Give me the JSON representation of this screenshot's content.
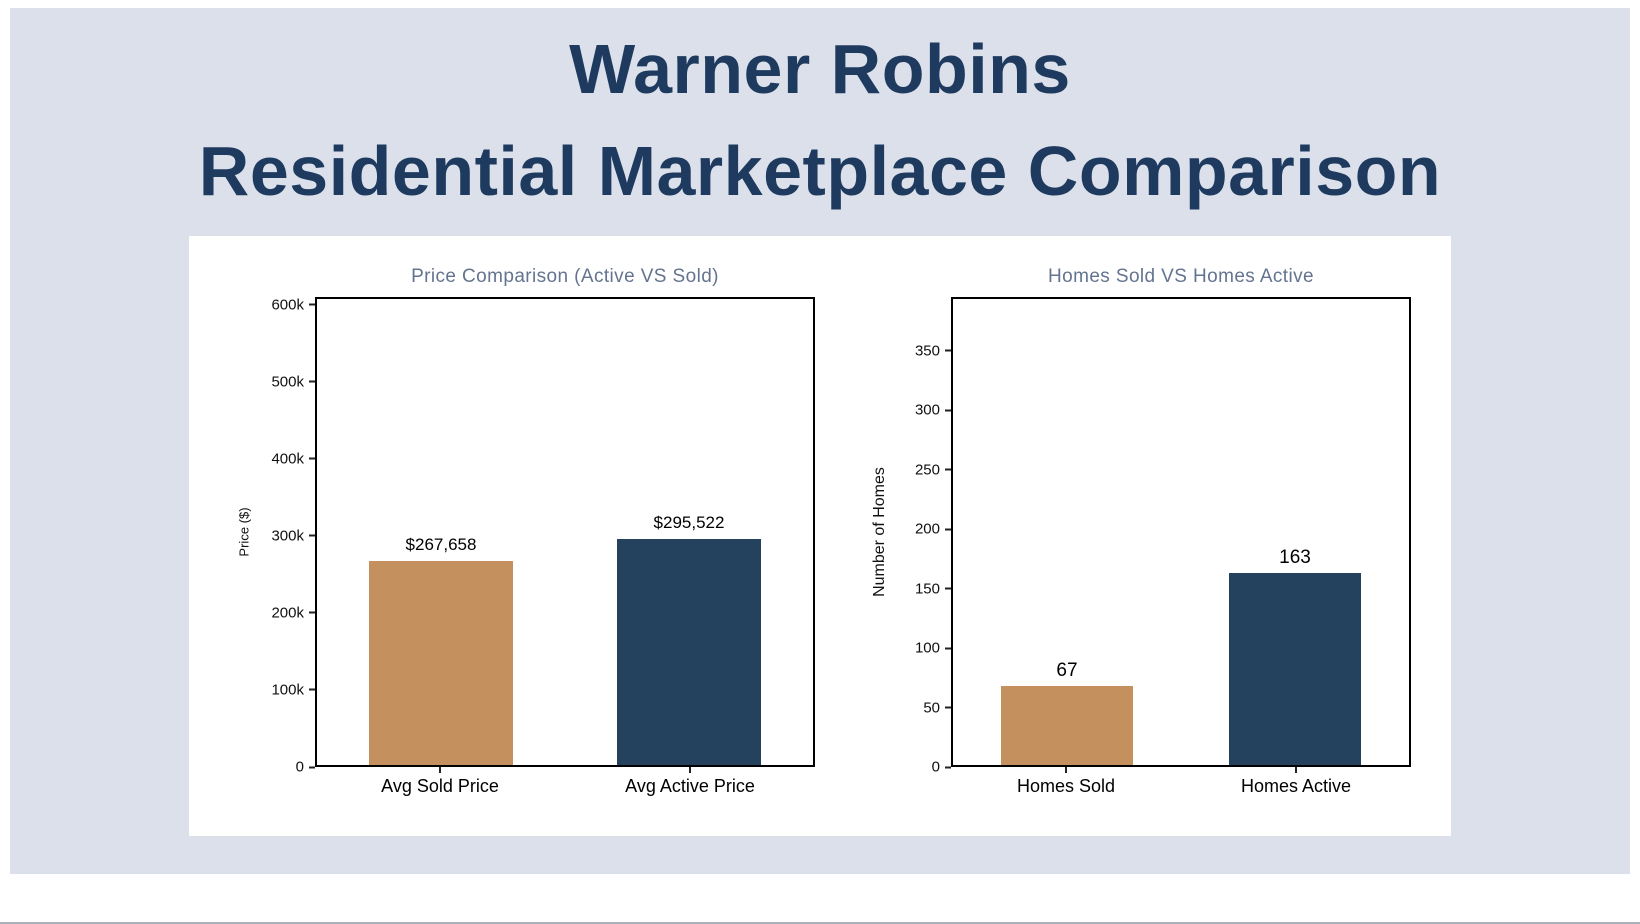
{
  "header": {
    "title_line1": "Warner Robins",
    "title_line2": "Residential Marketplace Comparison"
  },
  "colors": {
    "page_background": "#dbe0eb",
    "panel_background": "#ffffff",
    "title_text": "#1e3a5f",
    "chart_title_text": "#64748f",
    "axis_text": "#111111",
    "tan_bar": "#c3905e",
    "navy_bar": "#24415e"
  },
  "chart_data": [
    {
      "type": "bar",
      "title": "Price Comparison (Active VS Sold)",
      "xlabel": "",
      "ylabel": "Price ($)",
      "categories": [
        "Avg Sold Price",
        "Avg Active Price"
      ],
      "values": [
        267658,
        295522
      ],
      "value_labels": [
        "$267,658",
        "$295,522"
      ],
      "bar_colors": [
        "#c3905e",
        "#24415e"
      ],
      "ylim": [
        0,
        610000
      ],
      "grid": false,
      "legend": "none",
      "yticks": [
        {
          "value": 0,
          "label": "0"
        },
        {
          "value": 100000,
          "label": "100k"
        },
        {
          "value": 200000,
          "label": "200k"
        },
        {
          "value": 300000,
          "label": "300k"
        },
        {
          "value": 400000,
          "label": "400k"
        },
        {
          "value": 500000,
          "label": "500k"
        },
        {
          "value": 600000,
          "label": "600k"
        }
      ]
    },
    {
      "type": "bar",
      "title": "Homes Sold VS Homes Active",
      "xlabel": "",
      "ylabel": "Number of Homes",
      "categories": [
        "Homes Sold",
        "Homes Active"
      ],
      "values": [
        67,
        163
      ],
      "value_labels": [
        "67",
        "163"
      ],
      "bar_colors": [
        "#c3905e",
        "#24415e"
      ],
      "ylim": [
        0,
        395
      ],
      "grid": false,
      "legend": "none",
      "yticks": [
        {
          "value": 0,
          "label": "0"
        },
        {
          "value": 50,
          "label": "50"
        },
        {
          "value": 100,
          "label": "100"
        },
        {
          "value": 150,
          "label": "150"
        },
        {
          "value": 200,
          "label": "200"
        },
        {
          "value": 250,
          "label": "250"
        },
        {
          "value": 300,
          "label": "300"
        },
        {
          "value": 350,
          "label": "350"
        }
      ]
    }
  ]
}
